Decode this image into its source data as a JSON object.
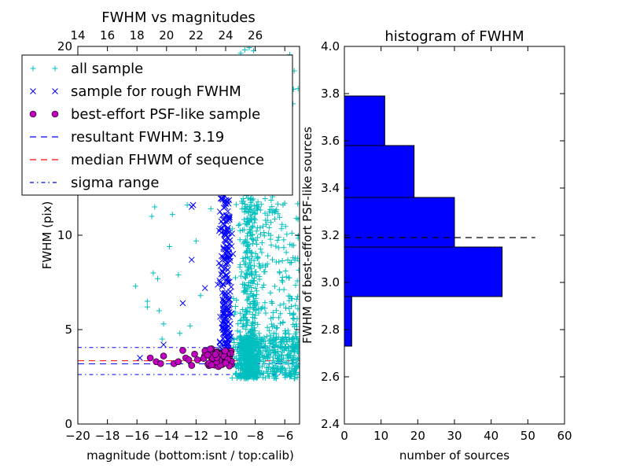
{
  "chart_data": [
    {
      "type": "scatter",
      "title": "FWHM vs magnitudes",
      "xlabel": "magnitude (bottom:isnt / top:calib)",
      "ylabel": "FWHM (pix)",
      "xlim": [
        -20,
        -5
      ],
      "ylim": [
        0,
        20
      ],
      "x_ticks": [
        -20,
        -18,
        -16,
        -14,
        -12,
        -10,
        -8,
        -6
      ],
      "x_tick_labels": [
        "−20",
        "−18",
        "−16",
        "−14",
        "−12",
        "−10",
        "−8",
        "−6"
      ],
      "y_ticks": [
        0,
        5,
        10,
        20
      ],
      "y_tick_labels": [
        "0",
        "5",
        "10",
        "20"
      ],
      "top_axis_ticks": [
        14,
        16,
        18,
        20,
        22,
        24,
        26
      ],
      "top_axis_tick_labels": [
        "14",
        "16",
        "18",
        "20",
        "22",
        "24",
        "26"
      ],
      "top_axis_offset": 34,
      "legend_position": "upper-left",
      "legend": [
        {
          "label": "all sample",
          "marker": "+",
          "color": "#00bfbf"
        },
        {
          "label": "sample for rough FWHM",
          "marker": "x",
          "color": "#0000ff"
        },
        {
          "label": "best-effort PSF-like sample",
          "marker": "o",
          "color": "#bf00bf"
        },
        {
          "label": "resultant FWHM: 3.19",
          "line": "dashed",
          "color": "#0000ff"
        },
        {
          "label": "median FHWM of sequence",
          "line": "dashed",
          "color": "#ff0000"
        },
        {
          "label": "sigma range",
          "line": "dashdot",
          "color": "#0000ff"
        }
      ],
      "hlines": [
        {
          "y": 3.19,
          "style": "dashed",
          "color": "#0000ff"
        },
        {
          "y": 3.35,
          "style": "dashed",
          "color": "#ff0000"
        },
        {
          "y": 2.62,
          "style": "dashdot",
          "color": "#0000ff"
        },
        {
          "y": 4.05,
          "style": "dashdot",
          "color": "#0000ff"
        }
      ],
      "series": [
        {
          "name": "all sample",
          "marker": "+",
          "color": "#00bfbf",
          "cluster": {
            "x_min": -9.6,
            "x_max": -5,
            "x_mode": -8.4,
            "y_base": 2.2,
            "y_max": 20,
            "count": 1400
          },
          "points": [
            {
              "x": -16.1,
              "y": 7.3
            },
            {
              "x": -15.3,
              "y": 6.5
            },
            {
              "x": -14.9,
              "y": 8.0
            },
            {
              "x": -14.8,
              "y": 11.5
            },
            {
              "x": -14.5,
              "y": 6.0
            },
            {
              "x": -14.3,
              "y": 4.5
            },
            {
              "x": -15.0,
              "y": 11.0
            },
            {
              "x": -13.6,
              "y": 11.1
            },
            {
              "x": -14.6,
              "y": 7.7
            },
            {
              "x": -15.3,
              "y": 6.2
            },
            {
              "x": -14.2,
              "y": 5.3
            },
            {
              "x": -13.8,
              "y": 9.4
            },
            {
              "x": -12.6,
              "y": 11.6
            },
            {
              "x": -11.4,
              "y": 13.6
            },
            {
              "x": -11.0,
              "y": 11.4
            },
            {
              "x": -12.0,
              "y": 9.7
            },
            {
              "x": -13.2,
              "y": 7.9
            },
            {
              "x": -11.7,
              "y": 6.8
            },
            {
              "x": -12.4,
              "y": 5.2
            },
            {
              "x": -13.1,
              "y": 4.8
            }
          ]
        },
        {
          "name": "sample for rough FWHM",
          "marker": "x",
          "color": "#0000ff",
          "cluster": {
            "x_min": -11.2,
            "x_max": -9.5,
            "x_mode": -10.0,
            "y_base": 3.0,
            "y_max": 14,
            "count": 260
          },
          "points": [
            {
              "x": -15.8,
              "y": 3.5
            },
            {
              "x": -14.2,
              "y": 4.2
            },
            {
              "x": -12.3,
              "y": 11.5
            },
            {
              "x": -12.2,
              "y": 11.6
            },
            {
              "x": -12.3,
              "y": 8.7
            },
            {
              "x": -12.9,
              "y": 6.4
            },
            {
              "x": -11.4,
              "y": 7.2
            }
          ]
        },
        {
          "name": "best-effort PSF-like sample",
          "marker": "o",
          "color": "#bf00bf",
          "cluster": {
            "x_min": -11.5,
            "x_max": -9.6,
            "y_min": 3.0,
            "y_max": 4.0,
            "count": 55
          },
          "points": [
            {
              "x": -15.1,
              "y": 3.5
            },
            {
              "x": -14.7,
              "y": 3.3
            },
            {
              "x": -14.4,
              "y": 3.2
            },
            {
              "x": -14.2,
              "y": 3.6
            },
            {
              "x": -13.5,
              "y": 3.2
            },
            {
              "x": -13.2,
              "y": 3.3
            },
            {
              "x": -12.9,
              "y": 3.9
            },
            {
              "x": -12.7,
              "y": 3.5
            },
            {
              "x": -12.5,
              "y": 3.4
            },
            {
              "x": -12.3,
              "y": 3.1
            },
            {
              "x": -12.1,
              "y": 3.7
            },
            {
              "x": -11.9,
              "y": 3.4
            }
          ]
        }
      ]
    },
    {
      "type": "bar",
      "orientation": "horizontal",
      "title": "histogram of FWHM",
      "xlabel": "number of sources",
      "ylabel": "FWHM of best-effort PSF-like sources",
      "xlim": [
        0,
        60
      ],
      "ylim": [
        2.4,
        4.0
      ],
      "x_ticks": [
        0,
        10,
        20,
        30,
        40,
        50,
        60
      ],
      "y_ticks": [
        2.4,
        2.6,
        2.8,
        3.0,
        3.2,
        3.4,
        3.6,
        3.8,
        4.0
      ],
      "y_tick_labels": [
        "2.4",
        "2.6",
        "2.8",
        "3.0",
        "3.2",
        "3.4",
        "3.6",
        "3.8",
        "4.0"
      ],
      "bar_color": "#0000ff",
      "bins": [
        {
          "low": 2.73,
          "high": 2.94,
          "count": 2
        },
        {
          "low": 2.94,
          "high": 3.15,
          "count": 43
        },
        {
          "low": 3.15,
          "high": 3.36,
          "count": 30
        },
        {
          "low": 3.36,
          "high": 3.58,
          "count": 19
        },
        {
          "low": 3.58,
          "high": 3.79,
          "count": 11
        }
      ],
      "hline": {
        "y": 3.19,
        "x_from": 0,
        "x_to": 52,
        "style": "dashed",
        "color": "#000000"
      }
    }
  ]
}
